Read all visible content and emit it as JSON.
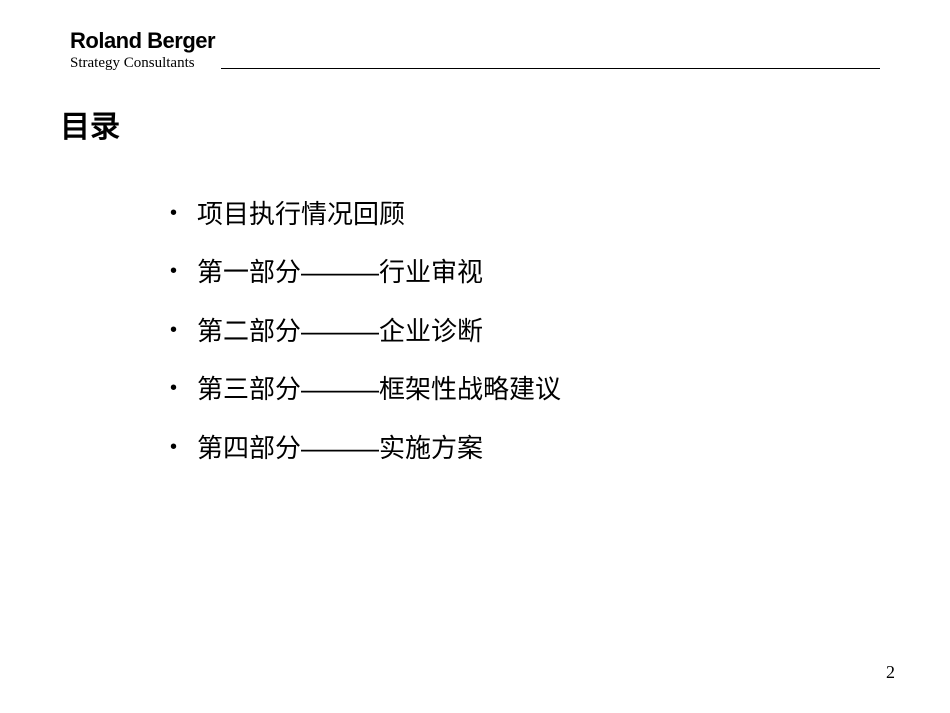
{
  "logo": {
    "main": "Roland Berger",
    "sub": "Strategy Consultants"
  },
  "title": "目录",
  "items": [
    "项目执行情况回顾",
    "第一部分———行业审视",
    "第二部分———企业诊断",
    "第三部分———框架性战略建议",
    "第四部分———实施方案"
  ],
  "page_number": "2",
  "styling": {
    "background_color": "#ffffff",
    "text_color": "#000000",
    "title_fontsize": 30,
    "item_fontsize": 26,
    "logo_main_fontsize": 22,
    "logo_sub_fontsize": 15,
    "page_number_fontsize": 18,
    "bullet_char": "•",
    "line_spacing": 22
  }
}
